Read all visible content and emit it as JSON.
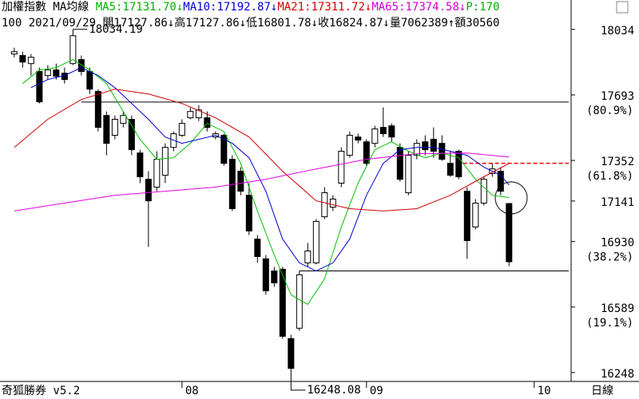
{
  "chart_data": {
    "type": "candlestick",
    "info_line1": [
      {
        "text": "加權指數 MA均線 ",
        "color": "#000000"
      },
      {
        "text": "MA5:17131.70↓",
        "color": "#00b000"
      },
      {
        "text": "MA10:17192.87↓",
        "color": "#0000d0"
      },
      {
        "text": "MA21:17311.72↓",
        "color": "#d00000"
      },
      {
        "text": "MA65:17374.58↓",
        "color": "#d000d0"
      },
      {
        "text": "P:170",
        "color": "#00b000"
      }
    ],
    "info_line2": "100 2021/09/29 開17127.86↓高17127.86↓低16801.78↓收16824.87↓量7062389↑額30560",
    "open": [
      17906,
      17898,
      17856,
      17815,
      17794,
      17823,
      17806,
      17856,
      17877,
      17815,
      17711,
      17586,
      17483,
      17545,
      17566,
      17391,
      17254,
      17213,
      17275,
      17420,
      17483,
      17574,
      17574,
      17574,
      17474,
      17483,
      17358,
      17296,
      17171,
      16943,
      16840,
      16777,
      16786,
      16425,
      16479,
      16819,
      16819,
      17059,
      17109,
      17234,
      17379,
      17474,
      17449,
      17441,
      17524,
      17532,
      17420,
      17184,
      17379,
      17449,
      17462,
      17441,
      17337,
      17400,
      17192,
      17006,
      17130,
      17284,
      17296,
      17127.86
    ],
    "high": [
      17939,
      17918,
      17906,
      17835,
      17848,
      17856,
      17835,
      18034.19,
      17898,
      17835,
      17723,
      17607,
      17586,
      17607,
      17586,
      17408,
      17296,
      17400,
      17441,
      17503,
      17566,
      17628,
      17640,
      17607,
      17503,
      17491,
      17379,
      17317,
      17234,
      16964,
      16860,
      16798,
      16798,
      16445,
      16777,
      16923,
      17047,
      17213,
      17171,
      17420,
      17503,
      17491,
      17462,
      17532,
      17628,
      17545,
      17441,
      17400,
      17462,
      17483,
      17524,
      17483,
      17400,
      17408,
      17213,
      17151,
      17267,
      17337,
      17317,
      17127.86
    ],
    "low": [
      17889,
      17835,
      17794,
      17649,
      17773,
      17773,
      17752,
      17848,
      17794,
      17698,
      17503,
      17379,
      17462,
      17524,
      17379,
      17234,
      16902,
      17192,
      17234,
      17400,
      17474,
      17566,
      17557,
      17503,
      17462,
      17325,
      17089,
      17171,
      16964,
      16819,
      16653,
      16694,
      16425,
      16248.08,
      16466,
      16798,
      16811,
      17047,
      17089,
      17213,
      17366,
      17441,
      17325,
      17420,
      17474,
      17449,
      17242,
      17171,
      17358,
      17379,
      17366,
      17350,
      17267,
      17254,
      16840,
      16993,
      17118,
      17267,
      17171,
      16801.78
    ],
    "close": [
      17918,
      17864,
      17889,
      17657,
      17823,
      17790,
      17773,
      18001,
      17815,
      17723,
      17524,
      17441,
      17566,
      17586,
      17408,
      17267,
      17142,
      17358,
      17420,
      17491,
      17545,
      17607,
      17615,
      17524,
      17491,
      17337,
      17101,
      17192,
      16985,
      16852,
      16674,
      16715,
      16437,
      16270,
      16757,
      16881,
      17035,
      17184,
      17151,
      17400,
      17483,
      17458,
      17337,
      17516,
      17491,
      17474,
      17254,
      17379,
      17441,
      17408,
      17400,
      17358,
      17275,
      17267,
      16935,
      17130,
      17254,
      17308,
      17192,
      16824.87
    ],
    "lines": [
      {
        "name": "MA5",
        "color": "#00c000",
        "x": [
          1,
          3,
          5,
          7,
          9,
          11,
          13,
          15,
          17,
          19,
          21,
          23,
          25,
          27,
          29,
          31,
          33,
          35,
          37,
          39,
          41,
          43,
          45,
          47,
          49,
          51,
          53,
          55,
          57,
          59
        ],
        "values": [
          17752,
          17823,
          17835,
          17877,
          17823,
          17752,
          17607,
          17462,
          17358,
          17366,
          17441,
          17545,
          17503,
          17337,
          17089,
          16860,
          16653,
          16603,
          16736,
          17006,
          17234,
          17408,
          17449,
          17400,
          17366,
          17391,
          17366,
          17254,
          17171,
          17159
        ]
      },
      {
        "name": "MA10",
        "color": "#0000d0",
        "x": [
          2,
          4,
          6,
          8,
          10,
          12,
          14,
          16,
          18,
          20,
          22,
          24,
          26,
          28,
          30,
          32,
          34,
          36,
          38,
          40,
          42,
          44,
          46,
          48,
          50,
          52,
          54,
          56,
          58,
          59
        ],
        "values": [
          17731,
          17773,
          17794,
          17835,
          17794,
          17731,
          17649,
          17566,
          17474,
          17441,
          17462,
          17483,
          17441,
          17366,
          17192,
          16943,
          16819,
          16777,
          16819,
          16943,
          17171,
          17337,
          17408,
          17420,
          17420,
          17400,
          17379,
          17317,
          17275,
          17225
        ]
      },
      {
        "name": "MA21",
        "color": "#d00000",
        "x": [
          0,
          4,
          8,
          12,
          16,
          20,
          24,
          28,
          32,
          36,
          40,
          44,
          48,
          52,
          56,
          59
        ],
        "values": [
          17420,
          17566,
          17669,
          17723,
          17698,
          17649,
          17574,
          17474,
          17296,
          17142,
          17101,
          17089,
          17101,
          17171,
          17267,
          17337
        ]
      },
      {
        "name": "MA65",
        "color": "#e000e0",
        "x": [
          0,
          6,
          12,
          18,
          24,
          30,
          36,
          42,
          48,
          54,
          59
        ],
        "values": [
          17089,
          17130,
          17171,
          17192,
          17213,
          17254,
          17308,
          17358,
          17387,
          17391,
          17370
        ]
      }
    ],
    "hlines": [
      {
        "value": 17656,
        "from": 8,
        "color": "#000000",
        "dash": false
      },
      {
        "value": 17337,
        "from": 53.5,
        "color": "#ff0000",
        "dash": true
      },
      {
        "value": 16777,
        "from": 34,
        "color": "#000000",
        "dash": false
      }
    ],
    "high_label": 18034.19,
    "low_label": 16248.08,
    "xlim": [
      -1.7,
      66.4
    ],
    "xticks": [
      {
        "value": 20,
        "label": "08"
      },
      {
        "value": 42,
        "label": "09"
      },
      {
        "value": 62,
        "label": "10"
      }
    ],
    "ylim": [
      16202,
      18187
    ],
    "yticks": [
      18034,
      17693,
      17352,
      17141,
      16930,
      16589,
      16248
    ],
    "fib_labels": [
      {
        "value": 17693,
        "label": "(80.9%)"
      },
      {
        "value": 17352,
        "label": "(61.8%)"
      },
      {
        "value": 16930,
        "label": "(38.2%)"
      },
      {
        "value": 16589,
        "label": "(19.1%)"
      }
    ],
    "version": "奇狐勝券 v5.2",
    "period": "日線"
  }
}
